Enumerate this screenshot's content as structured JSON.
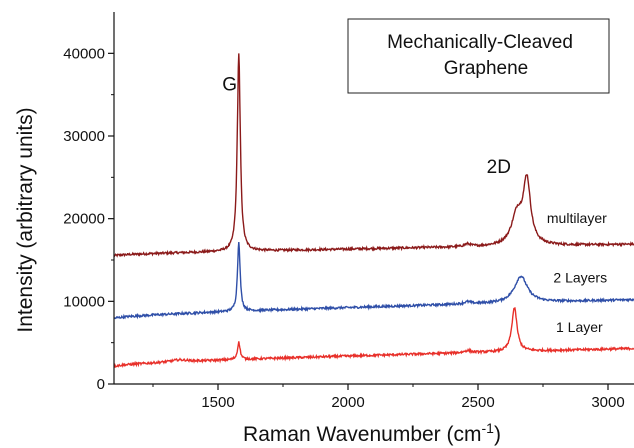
{
  "chart_data": {
    "type": "line",
    "title": "",
    "xlabel": "Raman Wavenumber (cm",
    "xlabel_sup": "-1",
    "xlabel_suffix": ")",
    "ylabel": "Intensity (arbitrary units)",
    "xlim": [
      1100,
      3100
    ],
    "ylim": [
      0,
      45000
    ],
    "xticks": [
      1500,
      2000,
      2500,
      3000
    ],
    "yticks": [
      0,
      10000,
      20000,
      30000,
      40000
    ],
    "xtick_labels": [
      "1500",
      "2000",
      "2500",
      "3000"
    ],
    "ytick_labels": [
      "0",
      "10000",
      "20000",
      "30000",
      "40000"
    ],
    "grid": false,
    "legend": "none",
    "boxed_annotation": [
      "Mechanically-Cleaved",
      "Graphene"
    ],
    "peak_labels": [
      {
        "text": "G",
        "x": 1545,
        "y": 35500
      },
      {
        "text": "2D",
        "x": 2580,
        "y": 25500
      }
    ],
    "series": [
      {
        "name": "multilayer",
        "color": "#8b1a1a",
        "baseline_start": 15500,
        "baseline_end": 16900,
        "peaks": [
          {
            "x": 1580,
            "height": 24000,
            "width": 7
          },
          {
            "x": 2460,
            "height": 300,
            "width": 15
          },
          {
            "x": 2650,
            "height": 3600,
            "width": 25
          },
          {
            "x": 2688,
            "height": 7600,
            "width": 17
          }
        ],
        "label_x": 2765,
        "label_y": 19500
      },
      {
        "name": "2 Layers",
        "color": "#2f4fa8",
        "baseline_start": 7900,
        "baseline_end": 10200,
        "peaks": [
          {
            "x": 1580,
            "height": 8500,
            "width": 6
          },
          {
            "x": 2460,
            "height": 250,
            "width": 15
          },
          {
            "x": 2665,
            "height": 3200,
            "width": 30
          }
        ],
        "label_x": 2790,
        "label_y": 12300
      },
      {
        "name": "1 Layer",
        "color": "#e8302a",
        "baseline_start": 2100,
        "baseline_end": 4300,
        "peaks": [
          {
            "x": 1350,
            "height": 250,
            "width": 40
          },
          {
            "x": 1580,
            "height": 2100,
            "width": 6
          },
          {
            "x": 2460,
            "height": 250,
            "width": 15
          },
          {
            "x": 2640,
            "height": 5300,
            "width": 12
          }
        ],
        "label_x": 2800,
        "label_y": 6300
      }
    ]
  }
}
